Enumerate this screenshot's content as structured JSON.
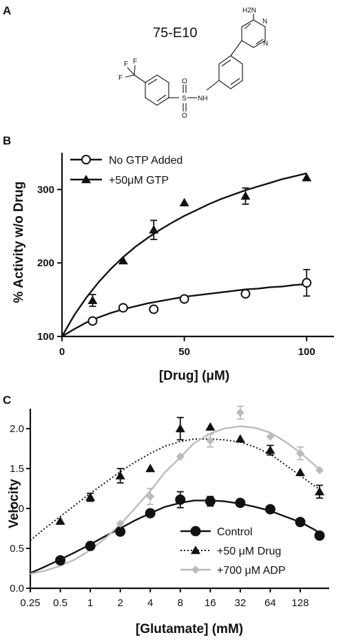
{
  "panel_letters": {
    "a": "A",
    "b": "B",
    "c": "C"
  },
  "compound": {
    "name": "75-E10",
    "atoms": {
      "nh2": "H2N",
      "n_top": "N",
      "n_ring": "N",
      "f1": "F",
      "f2": "F",
      "f3": "F",
      "s": "S",
      "o_top": "O",
      "o_bottom": "O",
      "nh": "NH"
    }
  },
  "chart_data": [
    {
      "panel": "B",
      "type": "scatter",
      "xlabel": "[Drug] (μM)",
      "ylabel": "% Activity w/o Drug",
      "xlim": [
        0,
        105
      ],
      "ylim": [
        100,
        350
      ],
      "xticks": [
        0,
        50,
        100
      ],
      "yticks": [
        100,
        200,
        300
      ],
      "legend_position": "top-left",
      "grid": false,
      "series": [
        {
          "name": "No GTP Added",
          "marker": "open-circle",
          "color": "#111111",
          "x": [
            12.5,
            25,
            37.5,
            50,
            75,
            100
          ],
          "y": [
            121,
            139,
            137,
            151,
            158,
            173
          ],
          "err": [
            0,
            0,
            0,
            0,
            0,
            18
          ],
          "fit_x": [
            0,
            5,
            10,
            15,
            20,
            25,
            30,
            35,
            40,
            45,
            50,
            55,
            60,
            65,
            70,
            75,
            80,
            85,
            90,
            95,
            100
          ],
          "fit_y": [
            100,
            110,
            119,
            126,
            132,
            137,
            141,
            145,
            148,
            151,
            154,
            156,
            158,
            160,
            162,
            164,
            165,
            167,
            168,
            170,
            171
          ]
        },
        {
          "name": "+50μM GTP",
          "marker": "filled-triangle",
          "color": "#111111",
          "x": [
            12.5,
            25,
            37.5,
            50,
            75,
            100
          ],
          "y": [
            149,
            203,
            245,
            282,
            291,
            316
          ],
          "err": [
            8,
            0,
            13,
            0,
            11,
            0
          ],
          "fit_x": [
            0,
            5,
            10,
            15,
            20,
            25,
            30,
            35,
            40,
            45,
            50,
            55,
            60,
            65,
            70,
            75,
            80,
            85,
            90,
            95,
            100
          ],
          "fit_y": [
            100,
            129,
            153,
            174,
            192,
            208,
            222,
            234,
            245,
            255,
            264,
            272,
            280,
            287,
            293,
            299,
            304,
            309,
            314,
            318,
            322
          ]
        }
      ]
    },
    {
      "panel": "C",
      "type": "scatter",
      "xscale": "log2",
      "xlabel": "[Glutamate] (mM)",
      "ylabel": "Velocity",
      "xlim": [
        0.25,
        250
      ],
      "ylim": [
        0,
        2.25
      ],
      "xtick_labels": [
        "0.25",
        "0.5",
        "1",
        "2",
        "4",
        "8",
        "16",
        "32",
        "64",
        "128"
      ],
      "xticks": [
        0.25,
        0.5,
        1,
        2,
        4,
        8,
        16,
        32,
        64,
        128
      ],
      "ytick_labels": [
        "0.0",
        "0.5",
        "1.0",
        "1.5",
        "2.0"
      ],
      "yticks": [
        0,
        0.5,
        1.0,
        1.5,
        2.0
      ],
      "legend_position": "bottom-right",
      "grid": false,
      "series": [
        {
          "name": "Control",
          "marker": "filled-circle",
          "line": "solid",
          "color": "#111111",
          "x": [
            0.5,
            1,
            2,
            4,
            8,
            16,
            32,
            64,
            128,
            200
          ],
          "y": [
            0.35,
            0.53,
            0.71,
            0.94,
            1.11,
            1.09,
            1.07,
            0.99,
            0.83,
            0.66
          ],
          "err": [
            0,
            0,
            0,
            0,
            0.1,
            0.06,
            0,
            0,
            0,
            0
          ],
          "fit_x": [
            0.25,
            0.35,
            0.5,
            0.7,
            1,
            1.4,
            2,
            2.8,
            4,
            5.6,
            8,
            11,
            16,
            22,
            32,
            45,
            64,
            90,
            128,
            180,
            200
          ],
          "fit_y": [
            0.19,
            0.27,
            0.36,
            0.45,
            0.55,
            0.65,
            0.75,
            0.85,
            0.94,
            1.02,
            1.07,
            1.1,
            1.1,
            1.09,
            1.06,
            1.02,
            0.97,
            0.9,
            0.83,
            0.73,
            0.68
          ]
        },
        {
          "name": "+50 μM Drug",
          "marker": "filled-triangle",
          "line": "dotted",
          "color": "#111111",
          "x": [
            0.5,
            1,
            2,
            4,
            8,
            16,
            32,
            64,
            128,
            200
          ],
          "y": [
            0.84,
            1.14,
            1.41,
            1.5,
            2.0,
            2.02,
            1.87,
            1.73,
            1.45,
            1.21
          ],
          "err": [
            0,
            0.05,
            0.09,
            0,
            0.14,
            0,
            0,
            0.06,
            0,
            0.08
          ],
          "fit_x": [
            0.25,
            0.35,
            0.5,
            0.7,
            1,
            1.4,
            2,
            2.8,
            4,
            5.6,
            8,
            11,
            16,
            22,
            32,
            45,
            64,
            90,
            128,
            180,
            200
          ],
          "fit_y": [
            0.6,
            0.75,
            0.9,
            1.04,
            1.19,
            1.32,
            1.46,
            1.58,
            1.69,
            1.78,
            1.84,
            1.87,
            1.87,
            1.86,
            1.83,
            1.77,
            1.68,
            1.55,
            1.41,
            1.28,
            1.24
          ]
        },
        {
          "name": "+700 μM ADP",
          "marker": "filled-diamond",
          "line": "solid",
          "color": "#bbbbbb",
          "x": [
            2,
            4,
            8,
            16,
            32,
            64,
            128,
            200
          ],
          "y": [
            0.81,
            1.15,
            1.65,
            1.85,
            2.2,
            1.9,
            1.69,
            1.48
          ],
          "err": [
            0,
            0.1,
            0,
            0.08,
            0.08,
            0,
            0.08,
            0
          ],
          "fit_x": [
            0.25,
            0.35,
            0.5,
            0.7,
            1,
            1.4,
            2,
            2.8,
            4,
            5.6,
            8,
            11,
            16,
            22,
            32,
            45,
            64,
            90,
            128,
            180,
            200
          ],
          "fit_y": [
            0.18,
            0.22,
            0.28,
            0.36,
            0.48,
            0.62,
            0.8,
            1.0,
            1.22,
            1.45,
            1.64,
            1.82,
            1.94,
            2.0,
            2.03,
            2.01,
            1.95,
            1.84,
            1.7,
            1.54,
            1.49
          ]
        }
      ]
    }
  ]
}
